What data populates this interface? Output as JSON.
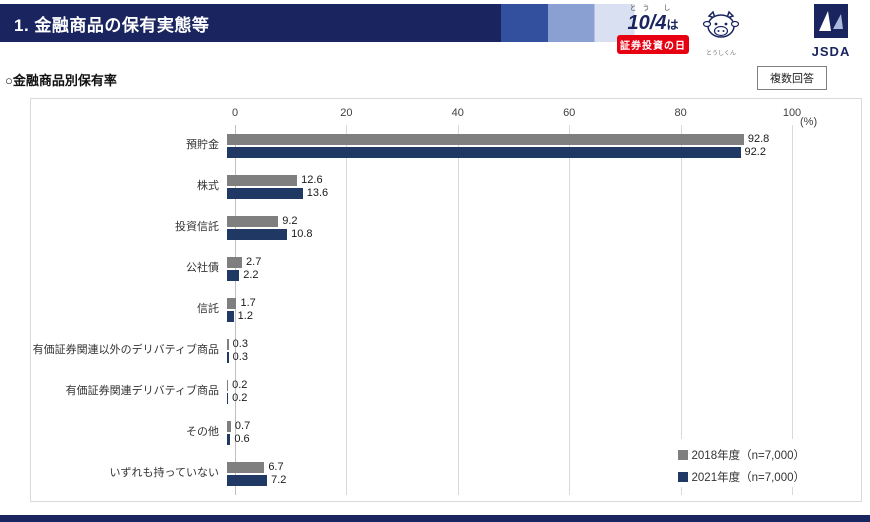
{
  "header": {
    "title": "1. 金融商品の保有実態等",
    "logo104": {
      "furigana": "とう し",
      "date": "10/4",
      "suffix": "は",
      "banner": "証券投資の日",
      "mascot_caption": "とうしくん"
    },
    "jsda": {
      "label": "JSDA"
    }
  },
  "section": {
    "heading": "○金融商品別保有率",
    "badge": "複数回答"
  },
  "chart_data": {
    "type": "bar",
    "orientation": "horizontal",
    "title": "金融商品別保有率",
    "categories": [
      "預貯金",
      "株式",
      "投資信託",
      "公社債",
      "信託",
      "有価証券関連以外のデリバティブ商品",
      "有価証券関連デリバティブ商品",
      "その他",
      "いずれも持っていない"
    ],
    "series": [
      {
        "name": "2018年度",
        "legend": "2018年度（n=7,000）",
        "color": "#7f7f7f",
        "values": [
          92.8,
          12.6,
          9.2,
          2.7,
          1.7,
          0.3,
          0.2,
          0.7,
          6.7
        ]
      },
      {
        "name": "2021年度",
        "legend": "2021年度（n=7,000）",
        "color": "#203864",
        "values": [
          92.2,
          13.6,
          10.8,
          2.2,
          1.2,
          0.3,
          0.2,
          0.6,
          7.2
        ]
      }
    ],
    "x_ticks": [
      0,
      20,
      40,
      60,
      80,
      100
    ],
    "xlim": [
      0,
      100
    ],
    "unit_label": "(%)",
    "grid": true,
    "legend_position": "bottom-right"
  },
  "colors": {
    "band_navy": "#1a2560",
    "series_2018": "#7f7f7f",
    "series_2021": "#203864",
    "accent_red": "#e60012",
    "gridline": "#d9d9d9"
  }
}
